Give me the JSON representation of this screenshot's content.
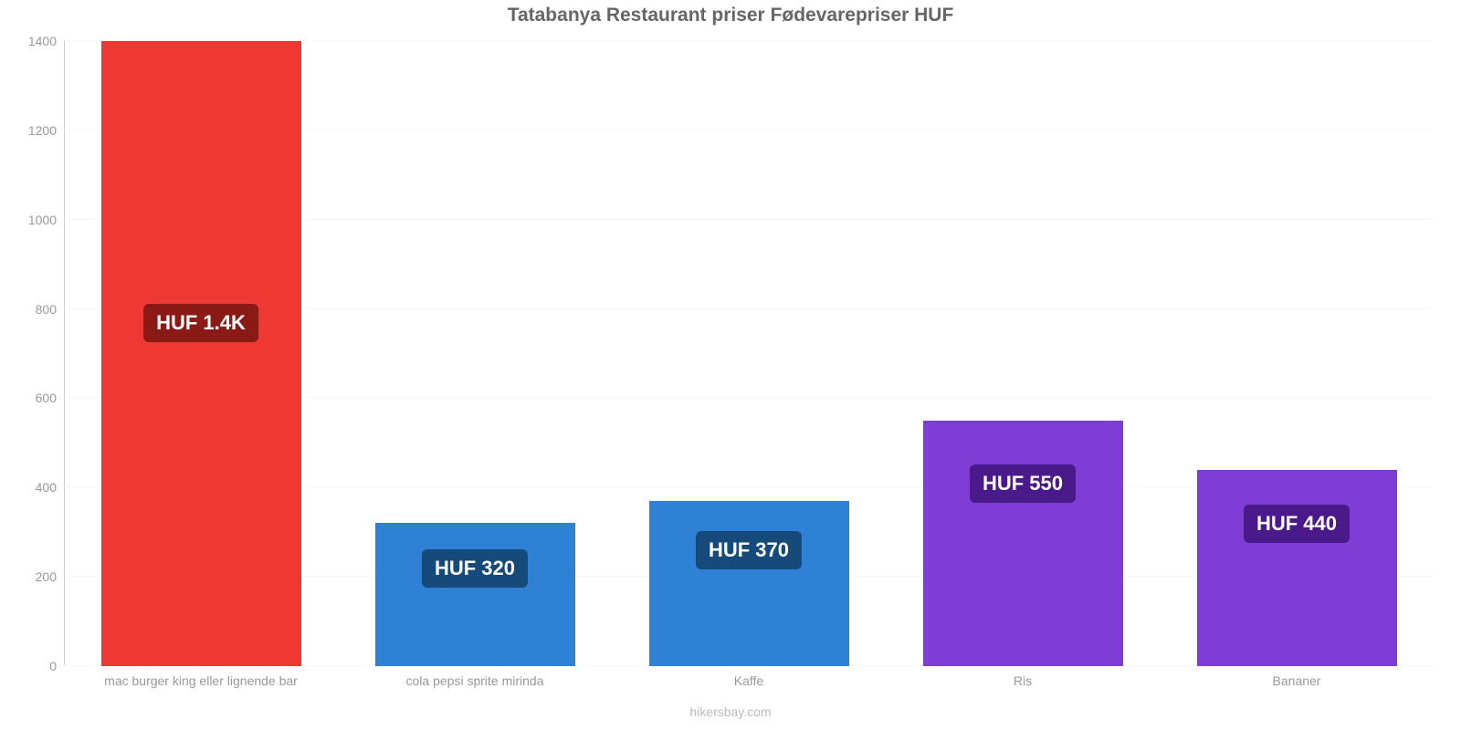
{
  "chart": {
    "type": "bar",
    "title": "Tatabanya Restaurant priser Fødevarepriser HUF",
    "title_fontsize": 21,
    "title_color": "#666666",
    "background_color": "#ffffff",
    "grid_color": "#f7f7f7",
    "axis_color": "#cccccc",
    "tick_color": "#999999",
    "tick_fontsize": 14,
    "ylim": [
      0,
      1400
    ],
    "ytick_step": 200,
    "yticks": [
      0,
      200,
      400,
      600,
      800,
      1000,
      1200,
      1400
    ],
    "bar_width_ratio": 0.73,
    "categories": [
      "mac burger king eller lignende bar",
      "cola pepsi sprite mirinda",
      "Kaffe",
      "Ris",
      "Bananer"
    ],
    "values": [
      1400,
      320,
      370,
      550,
      440
    ],
    "value_labels": [
      "HUF 1.4K",
      "HUF 320",
      "HUF 370",
      "HUF 550",
      "HUF 440"
    ],
    "bar_colors": [
      "#ed3833",
      "#2f81d6",
      "#2f81d6",
      "#7e3ed6",
      "#7e3ed6"
    ],
    "badge_colors": [
      "#8b1a17",
      "#154a7a",
      "#154a7a",
      "#4a1a8b",
      "#4a1a8b"
    ],
    "badge_fontsize": 22,
    "badge_text_color": "#ffffff",
    "xlabel_fontsize": 14,
    "xlabel_color": "#999999",
    "attribution": "hikersbay.com",
    "attribution_color": "#bbbbbb",
    "attribution_fontsize": 14
  }
}
